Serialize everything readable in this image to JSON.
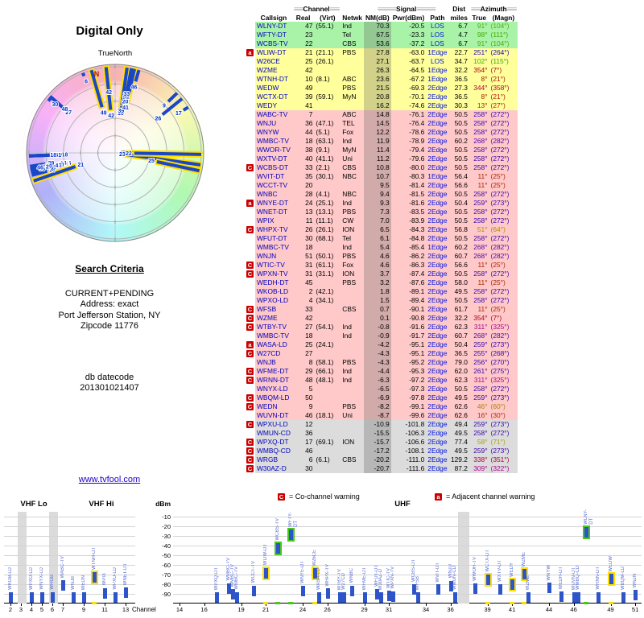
{
  "title": "Digital Only",
  "link": "www.tvfool.com",
  "radar": {
    "true_north_label": "TrueNorth",
    "north_label": "N"
  },
  "search_criteria": {
    "heading": "Search Criteria",
    "lines": [
      "CURRENT+PENDING",
      "Address: exact",
      "Port Jefferson Station, NY",
      "Zipcode 11776"
    ],
    "db_label": "db datecode",
    "db_value": "201301021407"
  },
  "table": {
    "groups": {
      "channel": "Channel",
      "signal": "Signal",
      "dist": "Dist",
      "azimuth": "Azimuth"
    },
    "deco_channel": "≡≡≡",
    "deco_signal": "≡≡≡≡≡≡",
    "deco_azimuth": "≡≡≡",
    "columns": [
      "Callsign",
      "Real",
      "(Virt)",
      "Netwk",
      "NM(dB)",
      "Pwr(dBm)",
      "Path",
      "miles",
      "True",
      "(Magn)"
    ],
    "row_fields": [
      "callsign",
      "real_ch",
      "virt_ch",
      "network",
      "nm_db",
      "pwr_dbm",
      "path",
      "dist_miles",
      "az_true_deg",
      "az_magn_deg",
      "band",
      "warning"
    ],
    "rows": [
      [
        "WLNY-DT",
        47,
        "(55.1)",
        "Ind",
        70.3,
        -20.5,
        "LOS",
        6.7,
        91,
        104,
        "g",
        ""
      ],
      [
        "WFTY-DT",
        23,
        "",
        "Tel",
        67.5,
        -23.3,
        "LOS",
        4.7,
        98,
        111,
        "g",
        ""
      ],
      [
        "WCBS-TV",
        22,
        "",
        "CBS",
        53.6,
        -37.2,
        "LOS",
        6.7,
        91,
        104,
        "g",
        ""
      ],
      [
        "WLIW-DT",
        21,
        "(21.1)",
        "PBS",
        27.8,
        -63.0,
        "1Edge",
        22.7,
        251,
        264,
        "y",
        "a"
      ],
      [
        "W26CE",
        25,
        "(26.1)",
        "",
        27.1,
        -63.7,
        "LOS",
        34.7,
        102,
        115,
        "y",
        ""
      ],
      [
        "WZME",
        42,
        "",
        "",
        26.3,
        -64.5,
        "1Edge",
        32.2,
        354,
        7,
        "y",
        ""
      ],
      [
        "WTNH-DT",
        10,
        "(8.1)",
        "ABC",
        23.6,
        -67.2,
        "1Edge",
        36.5,
        8,
        21,
        "y",
        ""
      ],
      [
        "WEDW",
        49,
        "",
        "PBS",
        21.5,
        -69.3,
        "2Edge",
        27.3,
        344,
        358,
        "y",
        ""
      ],
      [
        "WCTX-DT",
        39,
        "(59.1)",
        "MyN",
        20.8,
        -70.1,
        "2Edge",
        36.5,
        8,
        21,
        "y",
        ""
      ],
      [
        "WEDY",
        41,
        "",
        "",
        16.2,
        -74.6,
        "2Edge",
        30.3,
        13,
        27,
        "y",
        ""
      ],
      [
        "WABC-TV",
        7,
        "",
        "ABC",
        14.8,
        -76.1,
        "2Edge",
        50.5,
        258,
        272,
        "r",
        ""
      ],
      [
        "WNJU",
        36,
        "(47.1)",
        "TEL",
        14.5,
        -76.4,
        "2Edge",
        50.5,
        258,
        272,
        "r",
        ""
      ],
      [
        "WNYW",
        44,
        "(5.1)",
        "Fox",
        12.2,
        -78.6,
        "2Edge",
        50.5,
        258,
        272,
        "r",
        ""
      ],
      [
        "WMBC-TV",
        18,
        "(63.1)",
        "Ind",
        11.9,
        -78.9,
        "2Edge",
        60.2,
        268,
        282,
        "r",
        ""
      ],
      [
        "WWOR-TV",
        38,
        "(9.1)",
        "MyN",
        11.4,
        -79.4,
        "2Edge",
        50.5,
        258,
        272,
        "r",
        ""
      ],
      [
        "WXTV-DT",
        40,
        "(41.1)",
        "Uni",
        11.2,
        -79.6,
        "2Edge",
        50.5,
        258,
        272,
        "r",
        ""
      ],
      [
        "WCBS-DT",
        33,
        "(2.1)",
        "CBS",
        10.8,
        -80.0,
        "2Edge",
        50.5,
        258,
        272,
        "r",
        "C"
      ],
      [
        "WVIT-DT",
        35,
        "(30.1)",
        "NBC",
        10.7,
        -80.3,
        "1Edge",
        56.4,
        11,
        25,
        "r",
        ""
      ],
      [
        "WCCT-TV",
        20,
        "",
        "",
        9.5,
        -81.4,
        "2Edge",
        56.6,
        11,
        25,
        "r",
        ""
      ],
      [
        "WNBC",
        28,
        "(4.1)",
        "NBC",
        9.4,
        -81.5,
        "2Edge",
        50.5,
        258,
        272,
        "r",
        ""
      ],
      [
        "WNYE-DT",
        24,
        "(25.1)",
        "Ind",
        9.3,
        -81.6,
        "2Edge",
        50.4,
        259,
        273,
        "r",
        "a"
      ],
      [
        "WNET-DT",
        13,
        "(13.1)",
        "PBS",
        7.3,
        -83.5,
        "2Edge",
        50.5,
        258,
        272,
        "r",
        ""
      ],
      [
        "WPIX",
        11,
        "(11.1)",
        "CW",
        7.0,
        -83.9,
        "2Edge",
        50.5,
        258,
        272,
        "r",
        ""
      ],
      [
        "WHPX-TV",
        26,
        "(26.1)",
        "ION",
        6.5,
        -84.3,
        "2Edge",
        56.8,
        51,
        64,
        "r",
        "C"
      ],
      [
        "WFUT-DT",
        30,
        "(68.1)",
        "Tel",
        6.1,
        -84.8,
        "2Edge",
        50.5,
        258,
        272,
        "r",
        ""
      ],
      [
        "WMBC-TV",
        18,
        "",
        "Ind",
        5.4,
        -85.4,
        "1Edge",
        60.2,
        268,
        282,
        "r",
        ""
      ],
      [
        "WNJN",
        51,
        "(50.1)",
        "PBS",
        4.6,
        -86.2,
        "2Edge",
        60.7,
        268,
        282,
        "r",
        ""
      ],
      [
        "WTIC-TV",
        31,
        "(61.1)",
        "Fox",
        4.6,
        -86.3,
        "2Edge",
        56.6,
        11,
        25,
        "r",
        "C"
      ],
      [
        "WPXN-TV",
        31,
        "(31.1)",
        "ION",
        3.7,
        -87.4,
        "2Edge",
        50.5,
        258,
        272,
        "r",
        "C"
      ],
      [
        "WEDH-DT",
        45,
        "",
        "PBS",
        3.2,
        -87.6,
        "2Edge",
        58.0,
        11,
        25,
        "r",
        ""
      ],
      [
        "WKOB-LD",
        2,
        "(42.1)",
        "",
        1.8,
        -89.1,
        "2Edge",
        49.5,
        258,
        272,
        "r",
        ""
      ],
      [
        "WPXO-LD",
        4,
        "(34.1)",
        "",
        1.5,
        -89.4,
        "2Edge",
        50.5,
        258,
        272,
        "r",
        ""
      ],
      [
        "WFSB",
        33,
        "",
        "CBS",
        0.7,
        -90.1,
        "2Edge",
        61.7,
        11,
        25,
        "r",
        "C"
      ],
      [
        "WZME",
        42,
        "",
        "",
        0.1,
        -90.8,
        "2Edge",
        32.2,
        354,
        7,
        "r",
        "C"
      ],
      [
        "WTBY-TV",
        27,
        "(54.1)",
        "Ind",
        -0.8,
        -91.6,
        "2Edge",
        62.3,
        311,
        325,
        "r",
        "C"
      ],
      [
        "WMBC-TV",
        18,
        "",
        "Ind",
        -0.9,
        -91.7,
        "2Edge",
        60.7,
        268,
        282,
        "r",
        ""
      ],
      [
        "WASA-LD",
        25,
        "(24.1)",
        "",
        -4.2,
        -95.1,
        "2Edge",
        50.4,
        259,
        273,
        "r",
        "a"
      ],
      [
        "W27CD",
        27,
        "",
        "",
        -4.3,
        -95.1,
        "2Edge",
        36.5,
        255,
        268,
        "r",
        "C"
      ],
      [
        "WNJB",
        8,
        "(58.1)",
        "PBS",
        -4.3,
        -95.2,
        "2Edge",
        79.0,
        256,
        270,
        "r",
        ""
      ],
      [
        "WFME-DT",
        29,
        "(66.1)",
        "Ind",
        -4.4,
        -95.3,
        "2Edge",
        62.0,
        261,
        275,
        "r",
        "C"
      ],
      [
        "WRNN-DT",
        48,
        "(48.1)",
        "Ind",
        -6.3,
        -97.2,
        "2Edge",
        62.3,
        311,
        325,
        "r",
        "C"
      ],
      [
        "WNYX-LD",
        5,
        "",
        "",
        -6.5,
        -97.3,
        "2Edge",
        50.5,
        258,
        272,
        "r",
        ""
      ],
      [
        "WBQM-LD",
        50,
        "",
        "",
        -6.9,
        -97.8,
        "2Edge",
        49.5,
        259,
        273,
        "r",
        "C"
      ],
      [
        "WEDN",
        9,
        "",
        "PBS",
        -8.2,
        -99.1,
        "2Edge",
        62.6,
        46,
        60,
        "r",
        "C"
      ],
      [
        "WUVN-DT",
        46,
        "(18.1)",
        "Uni",
        -8.7,
        -99.6,
        "2Edge",
        62.6,
        16,
        30,
        "r",
        ""
      ],
      [
        "WPXU-LD",
        12,
        "",
        "",
        -10.9,
        -101.8,
        "2Edge",
        49.4,
        259,
        273,
        "x",
        "C"
      ],
      [
        "WMUN-CD",
        36,
        "",
        "",
        -15.5,
        -106.3,
        "2Edge",
        49.5,
        258,
        272,
        "x",
        ""
      ],
      [
        "WPXQ-DT",
        17,
        "(69.1)",
        "ION",
        -15.7,
        -106.6,
        "2Edge",
        77.4,
        58,
        71,
        "x",
        "C"
      ],
      [
        "WMBQ-CD",
        46,
        "",
        "",
        -17.2,
        -108.1,
        "2Edge",
        49.5,
        259,
        273,
        "x",
        "C"
      ],
      [
        "WRGB",
        6,
        "(6.1)",
        "CBS",
        -20.2,
        -111.0,
        "2Edge",
        129.2,
        338,
        351,
        "x",
        "C"
      ],
      [
        "W30AZ-D",
        30,
        "",
        "",
        -20.7,
        -111.6,
        "2Edge",
        87.2,
        309,
        322,
        "x",
        "C"
      ]
    ]
  },
  "legend": {
    "co_symbol": "C",
    "co_text": "= Co-channel warning",
    "adj_symbol": "a",
    "adj_text": "= Adjacent channel warning"
  },
  "signal_chart": {
    "ylabel": "dBm",
    "xlabel": "Channel",
    "band_labels": {
      "vhf_lo": "VHF Lo",
      "vhf_hi": "VHF Hi",
      "uhf": "UHF"
    },
    "yticks": [
      -10,
      -20,
      -30,
      -40,
      -50,
      -60,
      -70,
      -80,
      -90
    ],
    "vhf_xticks": [
      2,
      3,
      4,
      5,
      6,
      7,
      9,
      11,
      13
    ],
    "uhf_xticks": [
      14,
      16,
      19,
      21,
      24,
      26,
      29,
      31,
      34,
      36,
      39,
      41,
      44,
      46,
      49,
      51
    ],
    "gray_channels_vhf": [
      3,
      6
    ],
    "gray_channels_uhf": [
      37
    ]
  },
  "colors": {
    "band_green": "#a9f3a9",
    "band_yellow": "#ffff9c",
    "band_red": "#ffc9c9",
    "band_gray": "#dcdcdc",
    "bar_blue": "#2d55c9",
    "warn_red": "#cc0000",
    "callsign_blue": "#0000bb",
    "link_blue": "#2200cc",
    "highlight_green": "#46c818",
    "highlight_yellow": "#ffdf00"
  }
}
